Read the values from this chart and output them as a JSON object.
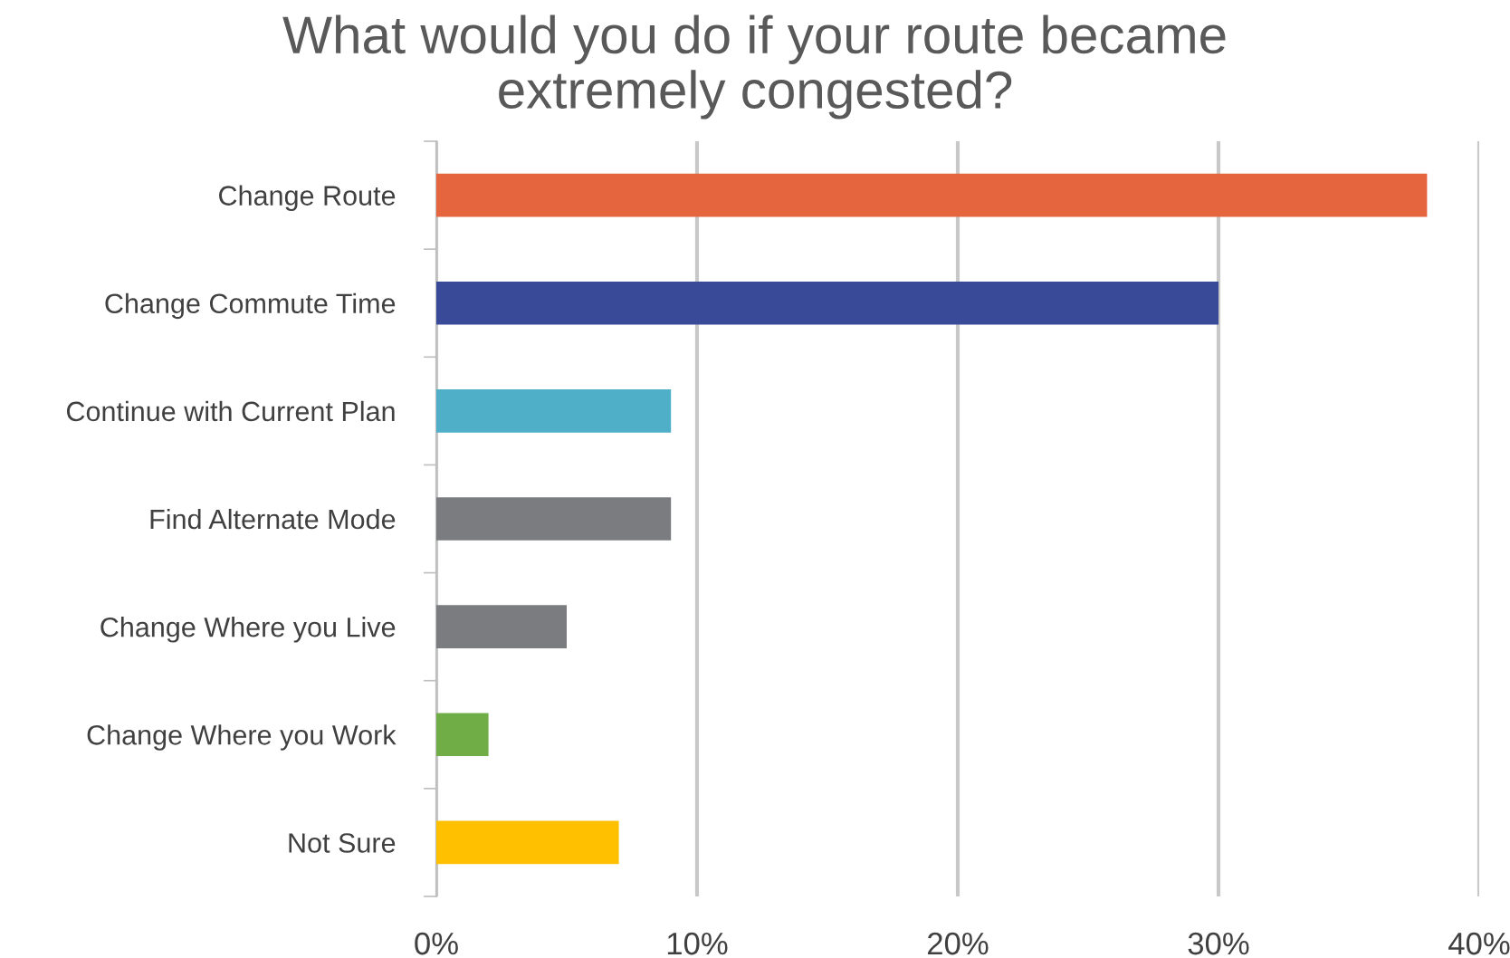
{
  "chart_data": {
    "type": "bar",
    "orientation": "horizontal",
    "title": "What would you do if your route became\nextremely congested?",
    "categories": [
      "Change Route",
      "Change Commute Time",
      "Continue with Current Plan",
      "Find Alternate Mode",
      "Change Where you Live",
      "Change Where you Work",
      "Not Sure"
    ],
    "values": [
      38,
      30,
      9,
      9,
      5,
      2,
      7
    ],
    "colors": [
      "#e5653e",
      "#394a98",
      "#4fafc9",
      "#7b7c80",
      "#7b7c80",
      "#70ad47",
      "#ffc000"
    ],
    "xlim": [
      0,
      40
    ],
    "xticks": [
      {
        "value": 0,
        "label": "0%"
      },
      {
        "value": 10,
        "label": "10%"
      },
      {
        "value": 20,
        "label": "20%"
      },
      {
        "value": 30,
        "label": "30%"
      },
      {
        "value": 40,
        "label": "40%"
      }
    ],
    "grid": "x",
    "legend": false
  }
}
